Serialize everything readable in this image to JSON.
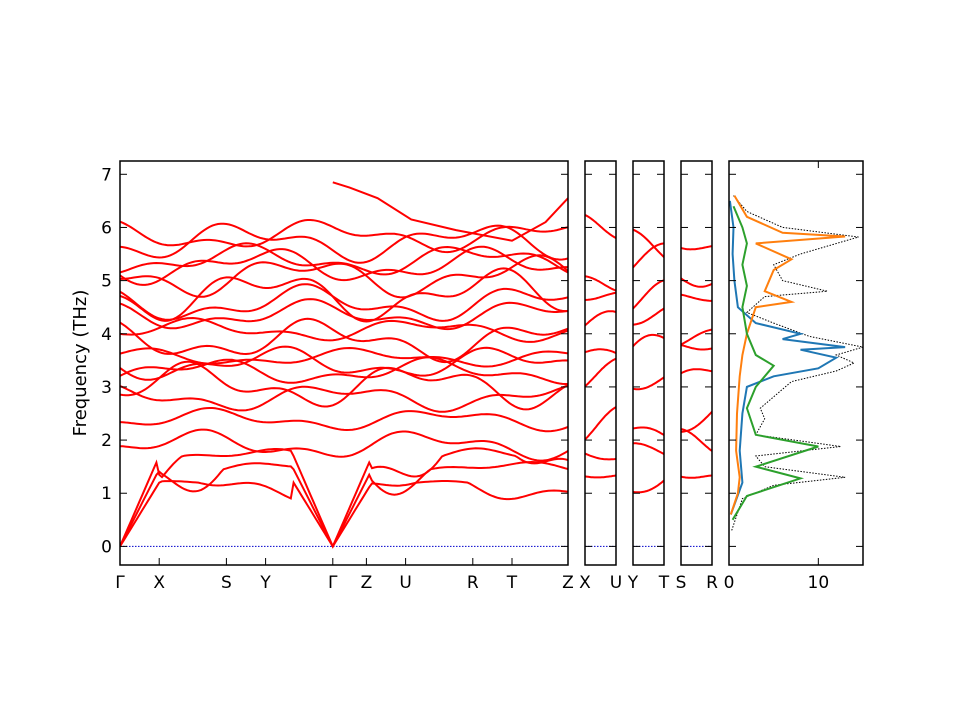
{
  "chart_data": [
    {
      "type": "line",
      "panel": "band-structure",
      "ylabel": "Frequency (THz)",
      "ylim": [
        -0.35,
        7.25
      ],
      "yticks": [
        0,
        1,
        2,
        3,
        4,
        5,
        6,
        7
      ],
      "segments": [
        {
          "xlim": [
            0,
            4.0
          ],
          "high_symmetry": [
            {
              "label": "Γ",
              "x": 0
            },
            {
              "label": "X",
              "x": 0.35
            },
            {
              "label": "S",
              "x": 0.95
            },
            {
              "label": "Y",
              "x": 1.3
            },
            {
              "label": "Γ",
              "x": 1.9
            },
            {
              "label": "Z",
              "x": 2.2
            },
            {
              "label": "U",
              "x": 2.55
            },
            {
              "label": "R",
              "x": 3.15
            },
            {
              "label": "T",
              "x": 3.5
            },
            {
              "label": "Z",
              "x": 4.0
            }
          ]
        },
        {
          "xlim": [
            0,
            0.3
          ],
          "high_symmetry": [
            {
              "label": "X",
              "x": 0
            },
            {
              "label": "U",
              "x": 0.3
            }
          ]
        },
        {
          "xlim": [
            0,
            0.3
          ],
          "high_symmetry": [
            {
              "label": "Y",
              "x": 0
            },
            {
              "label": "T",
              "x": 0.3
            }
          ]
        },
        {
          "xlim": [
            0,
            0.3
          ],
          "high_symmetry": [
            {
              "label": "S",
              "x": 0
            },
            {
              "label": "R",
              "x": 0.3
            }
          ]
        }
      ],
      "series_color": "#ff0000",
      "zero_line_color": "#0000cc"
    },
    {
      "type": "line",
      "panel": "density-of-states",
      "orientation": "horizontal",
      "xlim": [
        0,
        15
      ],
      "xticks": [
        0,
        10
      ],
      "ylim": [
        -0.35,
        7.25
      ],
      "series": [
        {
          "color": "#000000",
          "style": "dotted",
          "points": [
            [
              0.3,
              0.3
            ],
            [
              1.5,
              0.9
            ],
            [
              5,
              1.15
            ],
            [
              13,
              1.3
            ],
            [
              4,
              1.5
            ],
            [
              3,
              1.7
            ],
            [
              12.5,
              1.88
            ],
            [
              3,
              2.1
            ],
            [
              4,
              2.4
            ],
            [
              3.5,
              2.6
            ],
            [
              7,
              3.1
            ],
            [
              12,
              3.3
            ],
            [
              14,
              3.45
            ],
            [
              12,
              3.6
            ],
            [
              15,
              3.75
            ],
            [
              9,
              3.95
            ],
            [
              5,
              4.2
            ],
            [
              2,
              4.4
            ],
            [
              4,
              4.7
            ],
            [
              11,
              4.8
            ],
            [
              6,
              5.0
            ],
            [
              5,
              5.3
            ],
            [
              8,
              5.5
            ],
            [
              14.5,
              5.82
            ],
            [
              6,
              6.0
            ],
            [
              2,
              6.3
            ],
            [
              0.5,
              6.6
            ]
          ]
        },
        {
          "color": "#1f77b4",
          "style": "solid",
          "points": [
            [
              0.2,
              0.6
            ],
            [
              1.5,
              1.2
            ],
            [
              1.2,
              1.8
            ],
            [
              1.5,
              2.5
            ],
            [
              2,
              3.0
            ],
            [
              5,
              3.2
            ],
            [
              10,
              3.35
            ],
            [
              12,
              3.55
            ],
            [
              8,
              3.7
            ],
            [
              13,
              3.75
            ],
            [
              6,
              3.9
            ],
            [
              8,
              4.0
            ],
            [
              3,
              4.2
            ],
            [
              1,
              4.5
            ],
            [
              0.6,
              5.0
            ],
            [
              0.4,
              5.5
            ],
            [
              0.5,
              6.0
            ],
            [
              0.1,
              6.5
            ]
          ]
        },
        {
          "color": "#ff7f0e",
          "style": "solid",
          "points": [
            [
              0.2,
              0.6
            ],
            [
              1,
              1.0
            ],
            [
              1.2,
              1.3
            ],
            [
              0.8,
              1.8
            ],
            [
              0.9,
              2.5
            ],
            [
              1.2,
              3.2
            ],
            [
              1.5,
              3.6
            ],
            [
              2,
              4.0
            ],
            [
              3,
              4.5
            ],
            [
              7,
              4.6
            ],
            [
              4,
              4.8
            ],
            [
              5,
              5.2
            ],
            [
              7,
              5.4
            ],
            [
              3,
              5.7
            ],
            [
              13,
              5.83
            ],
            [
              6,
              5.9
            ],
            [
              2,
              6.2
            ],
            [
              0.6,
              6.6
            ]
          ]
        },
        {
          "color": "#2ca02c",
          "style": "solid",
          "points": [
            [
              0.4,
              0.5
            ],
            [
              2,
              0.95
            ],
            [
              8,
              1.28
            ],
            [
              3,
              1.5
            ],
            [
              10,
              1.88
            ],
            [
              3,
              2.1
            ],
            [
              2,
              2.6
            ],
            [
              3,
              3.0
            ],
            [
              5,
              3.4
            ],
            [
              3,
              3.6
            ],
            [
              2,
              4.0
            ],
            [
              1.5,
              4.5
            ],
            [
              2,
              4.9
            ],
            [
              1.5,
              5.3
            ],
            [
              2,
              5.7
            ],
            [
              1.5,
              6.0
            ],
            [
              0.5,
              6.4
            ]
          ]
        }
      ]
    }
  ]
}
